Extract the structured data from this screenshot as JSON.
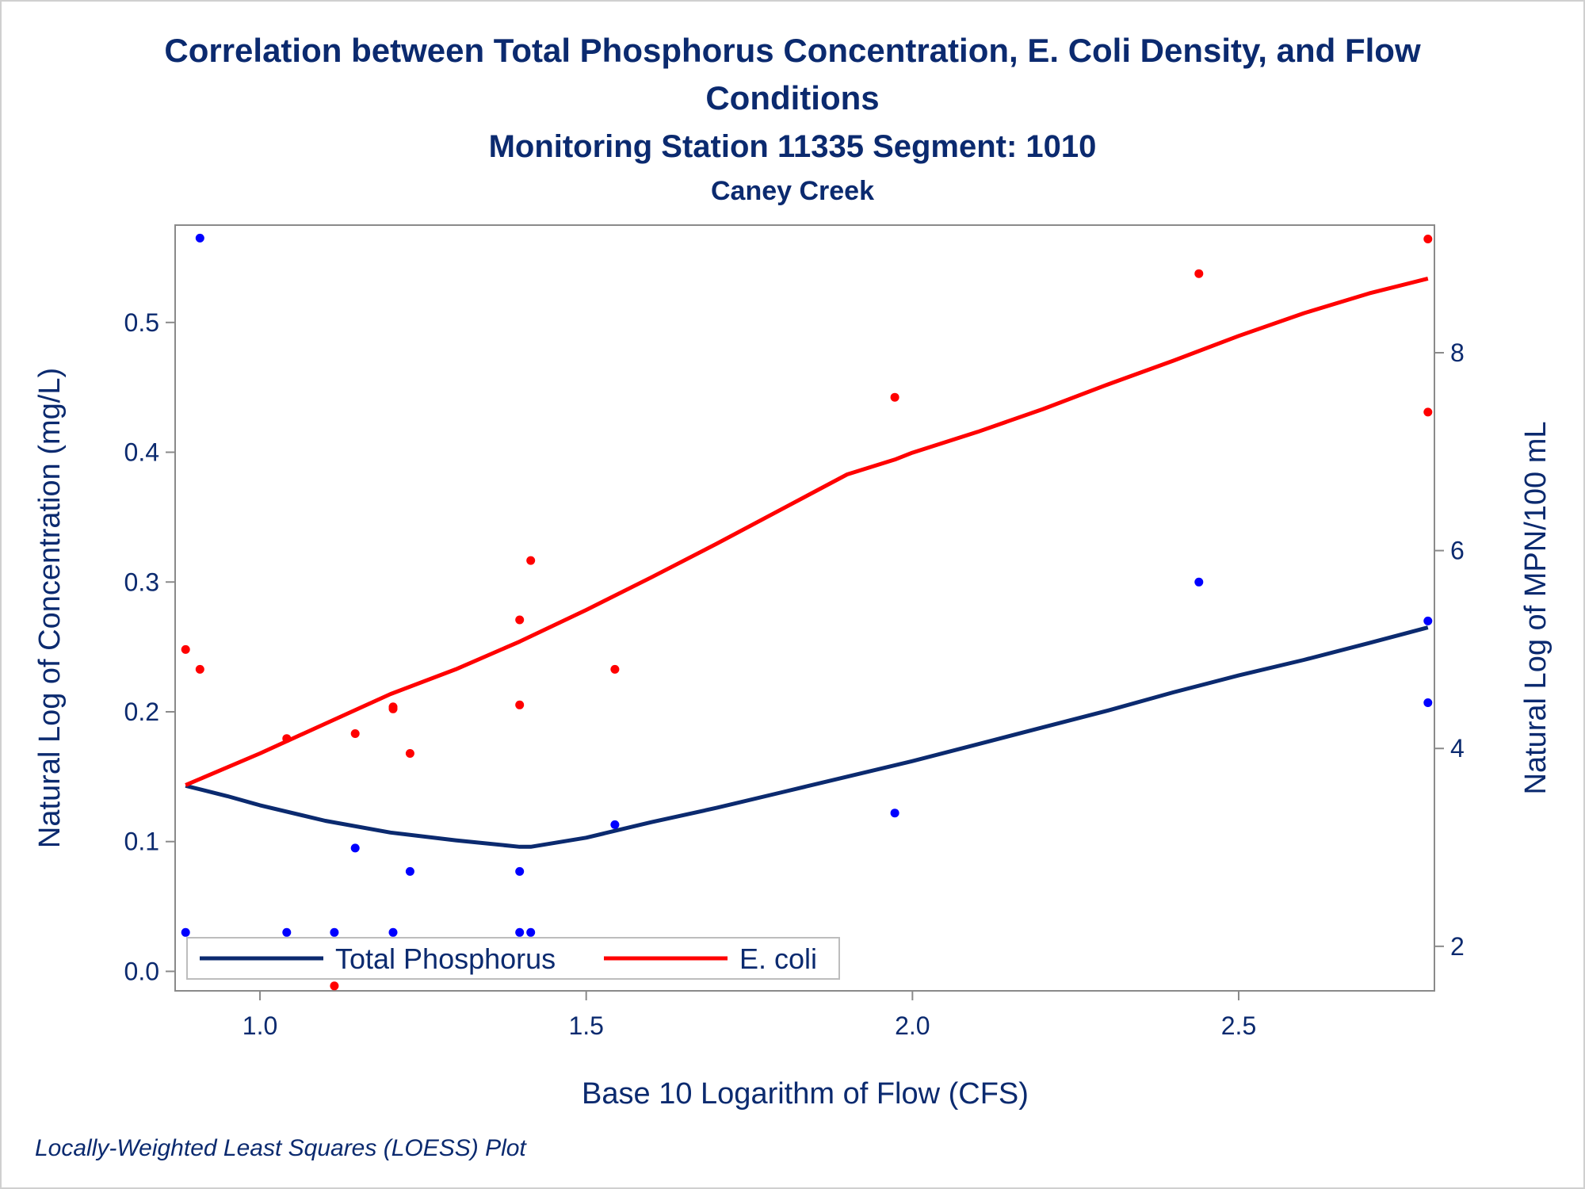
{
  "chart_data": {
    "type": "scatter",
    "title_line1": "Correlation between Total Phosphorus Concentration, E. Coli Density, and Flow",
    "title_line2": "Conditions",
    "subtitle": "Monitoring Station 11335 Segment: 1010",
    "subtitle2": "Caney Creek",
    "xlabel": "Base 10 Logarithm of Flow (CFS)",
    "ylabel_left": "Natural Log of Concentration (mg/L)",
    "ylabel_right": "Natural Log of MPN/100 mL",
    "footnote": "Locally-Weighted Least Squares (LOESS) Plot",
    "xlim": [
      0.87,
      2.8
    ],
    "ylim_left": [
      -0.015,
      0.575
    ],
    "ylim_right": [
      1.55,
      9.29
    ],
    "xticks": [
      1.0,
      1.5,
      2.0,
      2.5
    ],
    "xtick_labels": [
      "1.0",
      "1.5",
      "2.0",
      "2.5"
    ],
    "yticks_left": [
      0.0,
      0.1,
      0.2,
      0.3,
      0.4,
      0.5
    ],
    "ytick_labels_left": [
      "0.0",
      "0.1",
      "0.2",
      "0.3",
      "0.4",
      "0.5"
    ],
    "yticks_right": [
      2,
      4,
      6,
      8
    ],
    "ytick_labels_right": [
      "2",
      "4",
      "6",
      "8"
    ],
    "legend_position": "bottom-left",
    "series": [
      {
        "name": "Total Phosphorus",
        "axis": "left",
        "color": "#0b2a6f",
        "point_color": "#0000ff",
        "points": [
          [
            0.886,
            0.03
          ],
          [
            0.908,
            0.565
          ],
          [
            1.041,
            0.03
          ],
          [
            1.114,
            0.03
          ],
          [
            1.146,
            0.095
          ],
          [
            1.204,
            0.03
          ],
          [
            1.23,
            0.077
          ],
          [
            1.398,
            0.077
          ],
          [
            1.398,
            0.03
          ],
          [
            1.415,
            0.03
          ],
          [
            1.544,
            0.113
          ],
          [
            1.973,
            0.122
          ],
          [
            2.439,
            0.3
          ],
          [
            2.79,
            0.27
          ],
          [
            2.79,
            0.207
          ]
        ],
        "fit": [
          [
            0.886,
            0.143
          ],
          [
            0.95,
            0.135
          ],
          [
            1.0,
            0.128
          ],
          [
            1.1,
            0.116
          ],
          [
            1.2,
            0.107
          ],
          [
            1.3,
            0.101
          ],
          [
            1.398,
            0.096
          ],
          [
            1.415,
            0.096
          ],
          [
            1.5,
            0.103
          ],
          [
            1.6,
            0.115
          ],
          [
            1.7,
            0.126
          ],
          [
            1.8,
            0.138
          ],
          [
            1.9,
            0.15
          ],
          [
            2.0,
            0.162
          ],
          [
            2.1,
            0.175
          ],
          [
            2.2,
            0.188
          ],
          [
            2.3,
            0.201
          ],
          [
            2.4,
            0.215
          ],
          [
            2.5,
            0.228
          ],
          [
            2.6,
            0.24
          ],
          [
            2.7,
            0.253
          ],
          [
            2.79,
            0.265
          ]
        ]
      },
      {
        "name": "E. coli",
        "axis": "right",
        "color": "#ff0000",
        "point_color": "#ff0000",
        "points": [
          [
            0.886,
            5.0
          ],
          [
            0.908,
            4.8
          ],
          [
            1.041,
            4.1
          ],
          [
            1.114,
            1.6
          ],
          [
            1.146,
            4.15
          ],
          [
            1.204,
            4.4
          ],
          [
            1.204,
            4.42
          ],
          [
            1.23,
            3.95
          ],
          [
            1.398,
            5.3
          ],
          [
            1.398,
            4.44
          ],
          [
            1.415,
            5.9
          ],
          [
            1.544,
            4.8
          ],
          [
            1.973,
            7.55
          ],
          [
            2.439,
            8.8
          ],
          [
            2.79,
            9.15
          ],
          [
            2.79,
            7.4
          ]
        ],
        "fit": [
          [
            0.886,
            3.63
          ],
          [
            1.0,
            3.95
          ],
          [
            1.1,
            4.25
          ],
          [
            1.2,
            4.55
          ],
          [
            1.3,
            4.8
          ],
          [
            1.398,
            5.08
          ],
          [
            1.5,
            5.4
          ],
          [
            1.6,
            5.73
          ],
          [
            1.7,
            6.07
          ],
          [
            1.8,
            6.42
          ],
          [
            1.9,
            6.77
          ],
          [
            1.973,
            6.92
          ],
          [
            2.0,
            6.99
          ],
          [
            2.1,
            7.2
          ],
          [
            2.2,
            7.43
          ],
          [
            2.3,
            7.68
          ],
          [
            2.4,
            7.92
          ],
          [
            2.5,
            8.17
          ],
          [
            2.6,
            8.4
          ],
          [
            2.7,
            8.6
          ],
          [
            2.79,
            8.75
          ]
        ]
      }
    ]
  }
}
